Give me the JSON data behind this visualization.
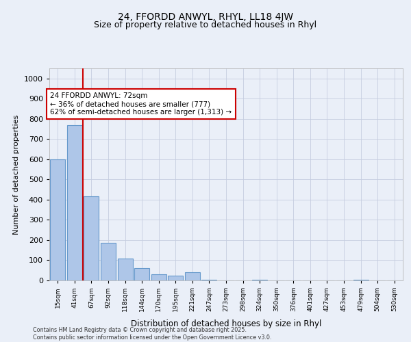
{
  "title": "24, FFORDD ANWYL, RHYL, LL18 4JW",
  "subtitle": "Size of property relative to detached houses in Rhyl",
  "xlabel": "Distribution of detached houses by size in Rhyl",
  "ylabel": "Number of detached properties",
  "categories": [
    "15sqm",
    "41sqm",
    "67sqm",
    "92sqm",
    "118sqm",
    "144sqm",
    "170sqm",
    "195sqm",
    "221sqm",
    "247sqm",
    "273sqm",
    "298sqm",
    "324sqm",
    "350sqm",
    "376sqm",
    "401sqm",
    "427sqm",
    "453sqm",
    "479sqm",
    "504sqm",
    "530sqm"
  ],
  "bar_values": [
    600,
    770,
    415,
    185,
    110,
    60,
    30,
    25,
    40,
    5,
    0,
    0,
    5,
    0,
    0,
    0,
    0,
    0,
    5,
    0,
    0
  ],
  "bar_color": "#aec6e8",
  "bar_edge_color": "#6699cc",
  "bg_color": "#eaeff8",
  "grid_color": "#c5cde0",
  "vline_x": 1.5,
  "vline_color": "#cc0000",
  "annotation_text": "24 FFORDD ANWYL: 72sqm\n← 36% of detached houses are smaller (777)\n62% of semi-detached houses are larger (1,313) →",
  "annotation_box_color": "#ffffff",
  "annotation_box_edge": "#cc0000",
  "footer_text": "Contains HM Land Registry data © Crown copyright and database right 2025.\nContains public sector information licensed under the Open Government Licence v3.0.",
  "ylim": [
    0,
    1050
  ],
  "yticks": [
    0,
    100,
    200,
    300,
    400,
    500,
    600,
    700,
    800,
    900,
    1000
  ],
  "title_fontsize": 10,
  "subtitle_fontsize": 9
}
